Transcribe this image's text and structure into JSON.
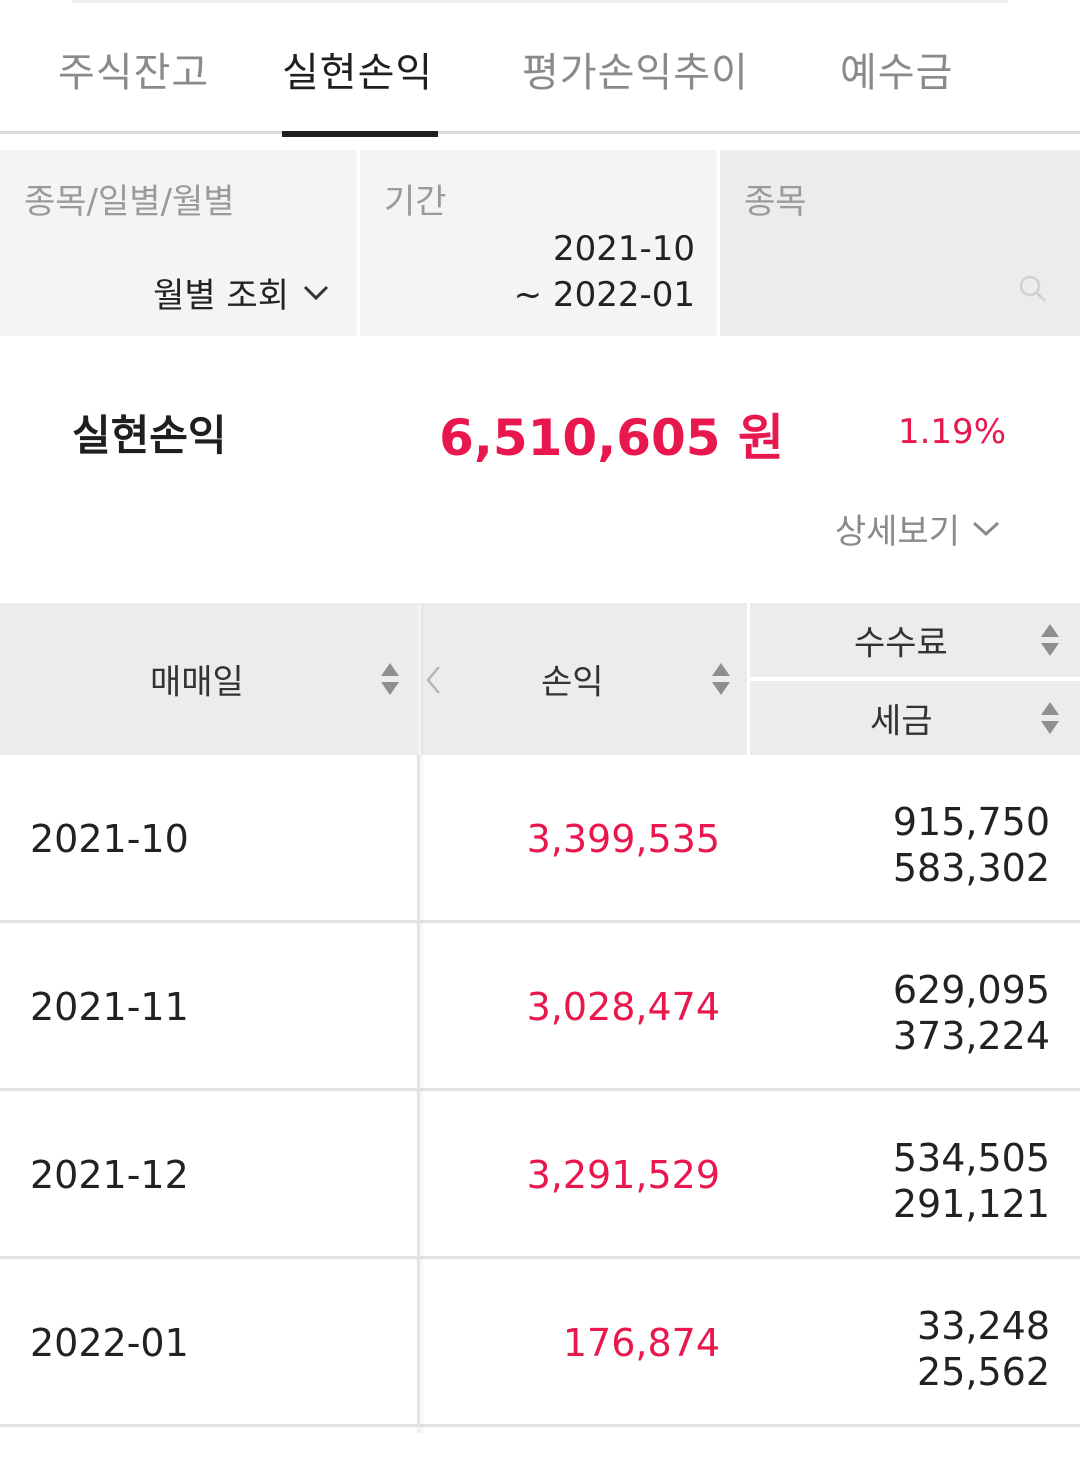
{
  "tabs": [
    {
      "label": "주식잔고",
      "active": false
    },
    {
      "label": "실현손익",
      "active": true
    },
    {
      "label": "평가손익추이",
      "active": false
    },
    {
      "label": "예수금",
      "active": false
    }
  ],
  "filters": {
    "type_label": "종목/일별/월별",
    "type_value": "월별 조회",
    "period_label": "기간",
    "period_from": "2021-10",
    "period_to": "~ 2022-01",
    "stock_label": "종목"
  },
  "summary": {
    "label": "실현손익",
    "amount": "6,510,605 원",
    "rate": "1.19%",
    "detail_toggle": "상세보기"
  },
  "table": {
    "headers": {
      "date": "매매일",
      "pl": "손익",
      "fee": "수수료",
      "tax": "세금"
    },
    "rows": [
      {
        "date": "2021-10",
        "pl": "3,399,535",
        "fee": "915,750",
        "tax": "583,302"
      },
      {
        "date": "2021-11",
        "pl": "3,028,474",
        "fee": "629,095",
        "tax": "373,224"
      },
      {
        "date": "2021-12",
        "pl": "3,291,529",
        "fee": "534,505",
        "tax": "291,121"
      },
      {
        "date": "2022-01",
        "pl": "176,874",
        "fee": "33,248",
        "tax": "25,562"
      }
    ]
  },
  "colors": {
    "accent_red": "#e8174e",
    "header_bg": "#ececec",
    "filter_bg": "#f4f4f4"
  },
  "icons": [
    "chevron-down-icon",
    "search-icon",
    "sort-icon",
    "chevron-left-icon"
  ]
}
